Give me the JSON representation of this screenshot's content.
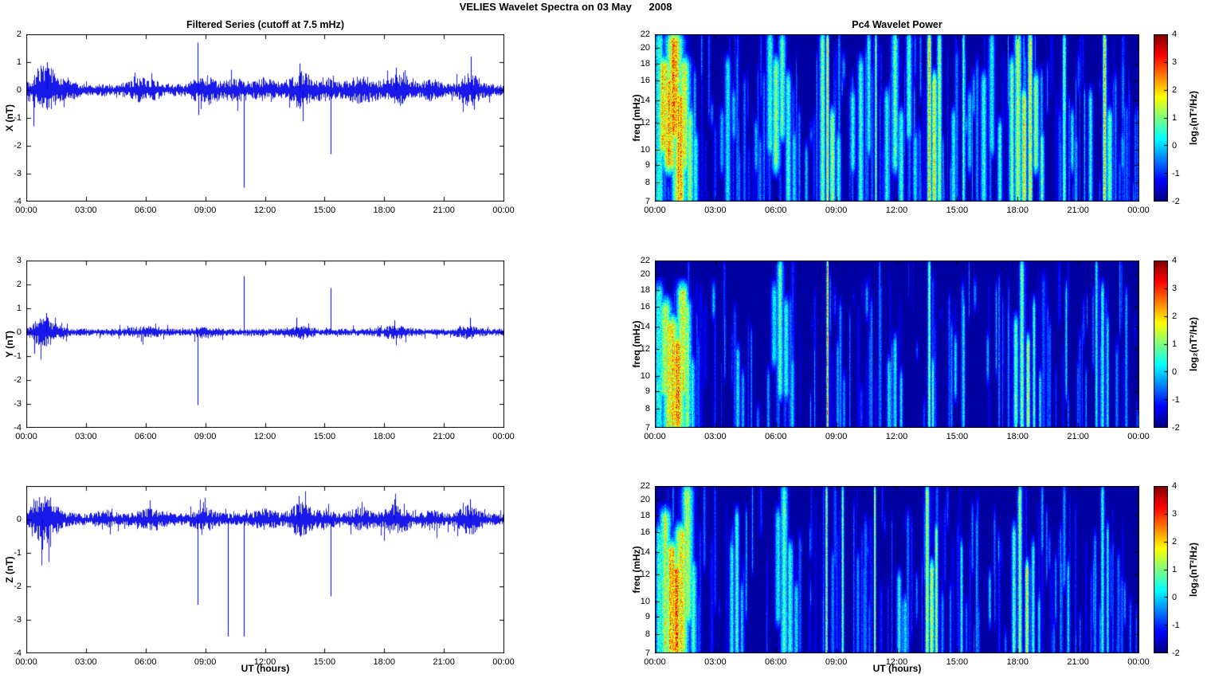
{
  "title": "VELIES Wavelet Spectra on 03 May      2008",
  "left_title": "Filtered Series (cutoff at 7.5 mHz)",
  "right_title": "Pc4 Wavelet Power",
  "xlabel": "UT (hours)",
  "colorbar_label": "log₂(nT²/Hz)",
  "x_ticks": [
    "00:00",
    "03:00",
    "06:00",
    "09:00",
    "12:00",
    "15:00",
    "18:00",
    "21:00",
    "00:00"
  ],
  "chart_data": [
    {
      "id": "timeseries-x",
      "type": "line",
      "ylabel": "X (nT)",
      "ylim": [
        -4,
        2
      ],
      "yticks": [
        2,
        1,
        0,
        -1,
        -2,
        -3,
        -4
      ],
      "x_range_hours": [
        0,
        24
      ],
      "line_color": "#0000E8",
      "noise_base": 0.13,
      "noise_bursts": [
        [
          0.9,
          0.5,
          0.45
        ],
        [
          2.2,
          0.3,
          0.1
        ],
        [
          5.9,
          0.6,
          0.15
        ],
        [
          9.0,
          0.5,
          0.2
        ],
        [
          10.6,
          0.4,
          0.15
        ],
        [
          12.0,
          0.5,
          0.12
        ],
        [
          13.8,
          0.4,
          0.3
        ],
        [
          15.0,
          0.4,
          0.15
        ],
        [
          16.8,
          0.6,
          0.18
        ],
        [
          18.8,
          0.6,
          0.22
        ],
        [
          20.4,
          0.3,
          0.12
        ],
        [
          22.3,
          0.4,
          0.25
        ]
      ],
      "spikes": [
        [
          0.35,
          -1.3
        ],
        [
          1.05,
          1.0
        ],
        [
          8.6,
          1.7
        ],
        [
          8.65,
          -0.9
        ],
        [
          10.95,
          -3.5
        ],
        [
          13.75,
          0.95
        ],
        [
          13.9,
          -0.8
        ],
        [
          15.3,
          -2.3
        ],
        [
          18.6,
          0.8
        ],
        [
          22.35,
          1.2
        ],
        [
          22.5,
          -0.7
        ]
      ],
      "seed": 101
    },
    {
      "id": "timeseries-y",
      "type": "line",
      "ylabel": "Y (nT)",
      "ylim": [
        -4,
        3
      ],
      "yticks": [
        3,
        2,
        1,
        0,
        -1,
        -2,
        -3,
        -4
      ],
      "x_range_hours": [
        0,
        24
      ],
      "line_color": "#0000E8",
      "noise_base": 0.09,
      "noise_bursts": [
        [
          0.9,
          0.5,
          0.3
        ],
        [
          5.9,
          0.5,
          0.08
        ],
        [
          9.0,
          0.4,
          0.08
        ],
        [
          13.8,
          0.4,
          0.1
        ],
        [
          18.5,
          0.5,
          0.1
        ],
        [
          22.2,
          0.4,
          0.1
        ]
      ],
      "spikes": [
        [
          0.4,
          -0.9
        ],
        [
          1.0,
          0.8
        ],
        [
          8.6,
          -3.05
        ],
        [
          10.95,
          2.35
        ],
        [
          13.6,
          0.6
        ],
        [
          15.3,
          1.85
        ],
        [
          18.5,
          0.5
        ],
        [
          22.3,
          0.6
        ]
      ],
      "seed": 202
    },
    {
      "id": "timeseries-z",
      "type": "line",
      "ylabel": "Z (nT)",
      "ylim": [
        -4,
        1
      ],
      "yticks": [
        0,
        -1,
        -2,
        -3,
        -4
      ],
      "x_range_hours": [
        0,
        24
      ],
      "line_color": "#0000E8",
      "noise_base": 0.11,
      "noise_bursts": [
        [
          0.9,
          0.5,
          0.35
        ],
        [
          3.9,
          0.3,
          0.08
        ],
        [
          6.3,
          0.5,
          0.1
        ],
        [
          9.0,
          0.4,
          0.12
        ],
        [
          12.0,
          0.4,
          0.1
        ],
        [
          13.8,
          0.4,
          0.22
        ],
        [
          15.0,
          0.3,
          0.1
        ],
        [
          16.8,
          0.4,
          0.1
        ],
        [
          18.6,
          0.5,
          0.18
        ],
        [
          20.4,
          0.3,
          0.1
        ],
        [
          22.3,
          0.4,
          0.18
        ]
      ],
      "spikes": [
        [
          0.8,
          -0.9
        ],
        [
          8.6,
          -2.55
        ],
        [
          10.15,
          -3.5
        ],
        [
          10.95,
          -3.5
        ],
        [
          13.7,
          0.7
        ],
        [
          15.3,
          -2.3
        ],
        [
          18.5,
          0.6
        ],
        [
          22.3,
          0.6
        ]
      ],
      "seed": 303
    },
    {
      "id": "wavelet-x",
      "type": "heatmap",
      "ylabel": "freq (mHz)",
      "yscale": "log",
      "ylim": [
        7,
        22
      ],
      "yticks": [
        22,
        20,
        18,
        16,
        14,
        12,
        10,
        9,
        8,
        7
      ],
      "clim": [
        -2,
        4
      ],
      "colorbar_ticks": [
        4,
        3,
        2,
        1,
        0,
        -1,
        -2
      ],
      "background_level": -1.8,
      "streak_count": 240,
      "seed": 11,
      "events": [
        [
          0.2,
          0.15,
          7,
          22,
          1.6
        ],
        [
          0.45,
          0.3,
          9,
          20,
          3.2
        ],
        [
          0.7,
          0.25,
          8,
          18,
          3.8
        ],
        [
          0.95,
          0.3,
          10,
          22,
          4.0
        ],
        [
          1.2,
          0.25,
          7,
          16,
          3.8
        ],
        [
          1.45,
          0.2,
          8,
          20,
          3.0
        ],
        [
          1.7,
          0.15,
          7,
          14,
          2.2
        ],
        [
          2.0,
          0.1,
          7,
          12,
          1.2
        ],
        [
          3.3,
          0.08,
          8,
          14,
          0.5
        ],
        [
          3.6,
          0.1,
          7,
          20,
          1.2
        ],
        [
          3.9,
          0.08,
          10,
          16,
          0.6
        ],
        [
          5.0,
          0.07,
          8,
          13,
          0.5
        ],
        [
          5.7,
          0.12,
          9,
          22,
          1.5
        ],
        [
          6.0,
          0.15,
          8,
          20,
          2.2
        ],
        [
          6.3,
          0.12,
          10,
          22,
          1.8
        ],
        [
          6.6,
          0.1,
          7,
          18,
          1.4
        ],
        [
          6.9,
          0.08,
          7,
          12,
          1.0
        ],
        [
          7.5,
          0.06,
          7,
          11,
          0.8
        ],
        [
          8.3,
          0.1,
          7,
          22,
          2.0
        ],
        [
          8.55,
          0.05,
          7,
          22,
          3.2
        ],
        [
          8.8,
          0.1,
          7,
          14,
          2.5
        ],
        [
          9.1,
          0.08,
          7,
          12,
          1.5
        ],
        [
          9.8,
          0.1,
          8,
          16,
          1.2
        ],
        [
          10.2,
          0.1,
          7,
          20,
          1.5
        ],
        [
          10.6,
          0.08,
          9,
          22,
          1.2
        ],
        [
          10.95,
          0.04,
          7,
          22,
          2.2
        ],
        [
          11.5,
          0.1,
          7,
          16,
          1.3
        ],
        [
          11.9,
          0.12,
          8,
          22,
          1.8
        ],
        [
          12.2,
          0.1,
          7,
          14,
          1.5
        ],
        [
          12.6,
          0.1,
          10,
          22,
          1.6
        ],
        [
          12.9,
          0.08,
          7,
          12,
          1.2
        ],
        [
          13.6,
          0.07,
          7,
          22,
          3.6
        ],
        [
          13.85,
          0.1,
          7,
          18,
          3.0
        ],
        [
          14.1,
          0.08,
          7,
          22,
          2.4
        ],
        [
          14.8,
          0.08,
          7,
          14,
          1.2
        ],
        [
          15.3,
          0.05,
          7,
          22,
          2.0
        ],
        [
          15.6,
          0.08,
          8,
          16,
          1.0
        ],
        [
          16.3,
          0.1,
          7,
          18,
          1.5
        ],
        [
          16.7,
          0.1,
          9,
          22,
          1.3
        ],
        [
          17.1,
          0.08,
          7,
          13,
          1.6
        ],
        [
          17.7,
          0.1,
          7,
          20,
          2.0
        ],
        [
          18.0,
          0.12,
          7,
          22,
          2.5
        ],
        [
          18.3,
          0.1,
          7,
          16,
          3.0
        ],
        [
          18.6,
          0.08,
          7,
          22,
          3.2
        ],
        [
          18.9,
          0.1,
          8,
          18,
          2.2
        ],
        [
          19.2,
          0.08,
          7,
          12,
          1.8
        ],
        [
          20.3,
          0.06,
          7,
          22,
          2.2
        ],
        [
          20.7,
          0.07,
          8,
          14,
          1.0
        ],
        [
          21.6,
          0.08,
          7,
          16,
          1.2
        ],
        [
          22.3,
          0.06,
          7,
          22,
          3.5
        ],
        [
          22.55,
          0.1,
          7,
          14,
          2.0
        ],
        [
          23.2,
          0.06,
          8,
          12,
          0.6
        ]
      ]
    },
    {
      "id": "wavelet-y",
      "type": "heatmap",
      "ylabel": "freq (mHz)",
      "yscale": "log",
      "ylim": [
        7,
        22
      ],
      "yticks": [
        22,
        20,
        18,
        16,
        14,
        12,
        10,
        9,
        8,
        7
      ],
      "clim": [
        -2,
        4
      ],
      "colorbar_ticks": [
        4,
        3,
        2,
        1,
        0,
        -1,
        -2
      ],
      "background_level": -1.8,
      "streak_count": 140,
      "seed": 22,
      "events": [
        [
          0.2,
          0.15,
          7,
          20,
          1.5
        ],
        [
          0.5,
          0.25,
          8,
          18,
          2.5
        ],
        [
          0.8,
          0.3,
          7,
          16,
          3.5
        ],
        [
          1.1,
          0.3,
          7,
          14,
          4.0
        ],
        [
          1.35,
          0.2,
          8,
          20,
          3.2
        ],
        [
          1.6,
          0.15,
          7,
          18,
          2.0
        ],
        [
          1.85,
          0.1,
          7,
          12,
          1.2
        ],
        [
          2.9,
          0.06,
          14,
          20,
          0.8
        ],
        [
          4.1,
          0.08,
          7,
          13,
          1.0
        ],
        [
          4.35,
          0.06,
          7,
          11,
          0.8
        ],
        [
          5.9,
          0.1,
          10,
          20,
          1.2
        ],
        [
          6.2,
          0.12,
          8,
          22,
          1.6
        ],
        [
          6.5,
          0.1,
          8,
          18,
          1.3
        ],
        [
          6.8,
          0.08,
          7,
          12,
          0.8
        ],
        [
          8.55,
          0.035,
          7,
          22,
          3.6
        ],
        [
          10.5,
          0.05,
          14,
          20,
          0.7
        ],
        [
          11.6,
          0.08,
          7,
          12,
          1.0
        ],
        [
          11.9,
          0.07,
          7,
          14,
          1.2
        ],
        [
          12.2,
          0.06,
          7,
          11,
          0.9
        ],
        [
          13.6,
          0.05,
          7,
          22,
          2.2
        ],
        [
          13.78,
          0.06,
          7,
          12,
          1.5
        ],
        [
          14.9,
          0.06,
          8,
          14,
          0.8
        ],
        [
          15.3,
          0.05,
          7,
          18,
          1.1
        ],
        [
          16.5,
          0.05,
          9,
          14,
          0.6
        ],
        [
          17.9,
          0.08,
          7,
          16,
          1.8
        ],
        [
          18.2,
          0.08,
          7,
          22,
          2.0
        ],
        [
          18.5,
          0.07,
          7,
          14,
          2.5
        ],
        [
          18.8,
          0.06,
          7,
          18,
          1.5
        ],
        [
          19.1,
          0.05,
          7,
          11,
          1.0
        ],
        [
          20.4,
          0.04,
          8,
          20,
          0.8
        ],
        [
          21.9,
          0.05,
          7,
          22,
          1.2
        ],
        [
          22.2,
          0.06,
          7,
          20,
          1.4
        ],
        [
          22.45,
          0.05,
          7,
          16,
          1.0
        ]
      ]
    },
    {
      "id": "wavelet-z",
      "type": "heatmap",
      "ylabel": "freq (mHz)",
      "yscale": "log",
      "ylim": [
        7,
        22
      ],
      "yticks": [
        22,
        20,
        18,
        16,
        14,
        12,
        10,
        9,
        8,
        7
      ],
      "clim": [
        -2,
        4
      ],
      "colorbar_ticks": [
        4,
        3,
        2,
        1,
        0,
        -1,
        -2
      ],
      "background_level": -1.8,
      "streak_count": 160,
      "seed": 33,
      "events": [
        [
          0.2,
          0.12,
          7,
          18,
          1.6
        ],
        [
          0.5,
          0.2,
          7,
          20,
          2.6
        ],
        [
          0.8,
          0.25,
          7,
          16,
          3.6
        ],
        [
          1.05,
          0.3,
          7,
          14,
          4.0
        ],
        [
          1.3,
          0.25,
          7,
          18,
          3.4
        ],
        [
          1.6,
          0.2,
          8,
          22,
          2.6
        ],
        [
          1.9,
          0.12,
          7,
          14,
          1.5
        ],
        [
          3.8,
          0.08,
          7,
          16,
          1.2
        ],
        [
          4.05,
          0.08,
          7,
          20,
          1.5
        ],
        [
          4.3,
          0.06,
          7,
          12,
          0.8
        ],
        [
          6.1,
          0.1,
          8,
          20,
          1.4
        ],
        [
          6.4,
          0.12,
          7,
          22,
          1.8
        ],
        [
          6.7,
          0.1,
          7,
          16,
          1.5
        ],
        [
          7.0,
          0.08,
          7,
          12,
          1.0
        ],
        [
          8.5,
          0.035,
          7,
          22,
          3.2
        ],
        [
          9.3,
          0.045,
          7,
          22,
          2.0
        ],
        [
          10.9,
          0.035,
          7,
          22,
          3.2
        ],
        [
          12.1,
          0.08,
          7,
          13,
          1.3
        ],
        [
          12.4,
          0.07,
          7,
          11,
          1.0
        ],
        [
          13.5,
          0.07,
          7,
          22,
          2.8
        ],
        [
          13.72,
          0.08,
          7,
          14,
          3.2
        ],
        [
          13.95,
          0.06,
          7,
          18,
          2.2
        ],
        [
          15.2,
          0.05,
          7,
          16,
          1.4
        ],
        [
          16.6,
          0.05,
          8,
          13,
          0.8
        ],
        [
          17.8,
          0.08,
          7,
          18,
          1.6
        ],
        [
          18.1,
          0.08,
          7,
          22,
          2.0
        ],
        [
          18.45,
          0.07,
          7,
          14,
          2.6
        ],
        [
          18.75,
          0.06,
          7,
          16,
          1.6
        ],
        [
          19.05,
          0.05,
          7,
          11,
          1.2
        ],
        [
          20.5,
          0.05,
          7,
          14,
          1.0
        ],
        [
          22.2,
          0.06,
          7,
          22,
          1.6
        ],
        [
          22.45,
          0.05,
          7,
          18,
          1.2
        ],
        [
          23.3,
          0.04,
          8,
          12,
          0.5
        ]
      ]
    }
  ]
}
